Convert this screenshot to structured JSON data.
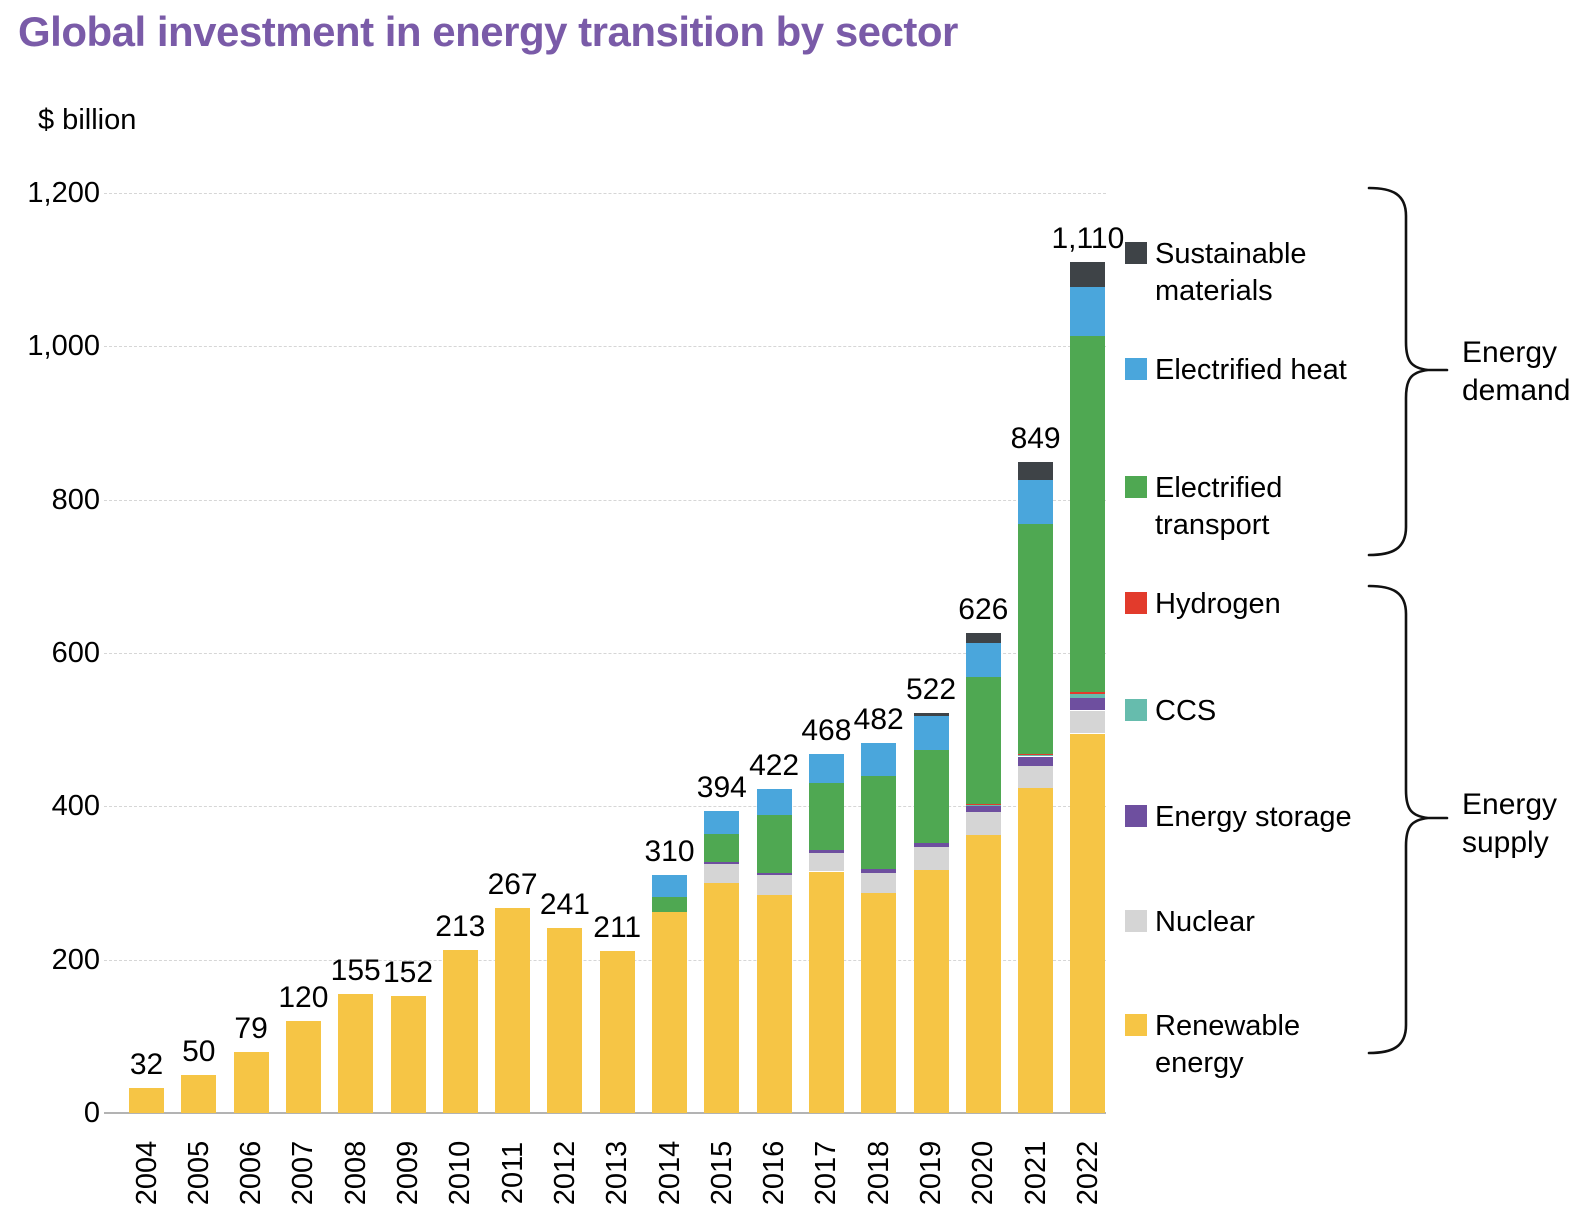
{
  "title": "Global investment in energy transition by sector",
  "units_label": "$ billion",
  "accent_colors": {
    "title_purple": "#7A5BA8",
    "grid": "#d6d6d6",
    "axis": "#b3b3b3"
  },
  "chart_data": {
    "type": "bar",
    "stacked": true,
    "title": "Global investment in energy transition by sector",
    "ylabel": "$ billion",
    "xlabel": "",
    "ylim": [
      0,
      1200
    ],
    "ytick_values": [
      0,
      200,
      400,
      600,
      800,
      1000,
      1200
    ],
    "ytick_labels": [
      "0",
      "200",
      "400",
      "600",
      "800",
      "1,000",
      "1,200"
    ],
    "grid": "horizontal dashed",
    "legend_position": "right",
    "categories": [
      "2004",
      "2005",
      "2006",
      "2007",
      "2008",
      "2009",
      "2010",
      "2011",
      "2012",
      "2013",
      "2014",
      "2015",
      "2016",
      "2017",
      "2018",
      "2019",
      "2020",
      "2021",
      "2022"
    ],
    "totals": [
      32,
      50,
      79,
      120,
      155,
      152,
      213,
      267,
      241,
      211,
      310,
      394,
      422,
      468,
      482,
      522,
      626,
      849,
      1110
    ],
    "total_labels": [
      "32",
      "50",
      "79",
      "120",
      "155",
      "152",
      "213",
      "267",
      "241",
      "211",
      "310",
      "394",
      "422",
      "468",
      "482",
      "522",
      "626",
      "849",
      "1,110"
    ],
    "series": [
      {
        "key": "renewable-energy",
        "name": "Renewable energy",
        "color": "#F6C545",
        "values": [
          32,
          50,
          79,
          120,
          155,
          152,
          213,
          267,
          241,
          211,
          262,
          300,
          284,
          315,
          287,
          317,
          363,
          424,
          495
        ]
      },
      {
        "key": "nuclear",
        "name": "Nuclear",
        "color": "#D5D5D5",
        "values": [
          0,
          0,
          0,
          0,
          0,
          0,
          0,
          0,
          0,
          0,
          0,
          25,
          27,
          24,
          26,
          30,
          30,
          29,
          30
        ]
      },
      {
        "key": "energy-storage",
        "name": "Energy storage",
        "color": "#6E4F9F",
        "values": [
          0,
          0,
          0,
          0,
          0,
          0,
          0,
          0,
          0,
          0,
          0,
          2,
          2,
          4,
          5,
          5,
          7,
          12,
          16
        ]
      },
      {
        "key": "ccs",
        "name": "CCS",
        "color": "#66BCAD",
        "values": [
          0,
          0,
          0,
          0,
          0,
          0,
          0,
          0,
          0,
          0,
          0,
          0,
          0,
          0,
          0,
          0,
          2,
          2,
          6
        ]
      },
      {
        "key": "hydrogen",
        "name": "Hydrogen",
        "color": "#E23B2C",
        "values": [
          0,
          0,
          0,
          0,
          0,
          0,
          0,
          0,
          0,
          0,
          0,
          0,
          0,
          0,
          0,
          0,
          1,
          1,
          2
        ]
      },
      {
        "key": "electrified-transport",
        "name": "Electrified transport",
        "color": "#4FA852",
        "values": [
          0,
          0,
          0,
          0,
          0,
          0,
          0,
          0,
          0,
          0,
          20,
          37,
          76,
          88,
          122,
          121,
          166,
          300,
          464
        ]
      },
      {
        "key": "electrified-heat",
        "name": "Electrified heat",
        "color": "#4AA6DC",
        "values": [
          0,
          0,
          0,
          0,
          0,
          0,
          0,
          0,
          0,
          0,
          28,
          30,
          33,
          37,
          42,
          45,
          44,
          58,
          64
        ]
      },
      {
        "key": "sustainable-materials",
        "name": "Sustainable materials",
        "color": "#3E4347",
        "values": [
          0,
          0,
          0,
          0,
          0,
          0,
          0,
          0,
          0,
          0,
          0,
          0,
          0,
          0,
          0,
          4,
          13,
          23,
          33
        ]
      }
    ],
    "legend": [
      {
        "key": "sustainable-materials",
        "lines": [
          "Sustainable",
          "materials"
        ],
        "color": "#3E4347"
      },
      {
        "key": "electrified-heat",
        "lines": [
          "Electrified heat"
        ],
        "color": "#4AA6DC"
      },
      {
        "key": "electrified-transport",
        "lines": [
          "Electrified",
          "transport"
        ],
        "color": "#4FA852"
      },
      {
        "key": "hydrogen",
        "lines": [
          "Hydrogen"
        ],
        "color": "#E23B2C"
      },
      {
        "key": "ccs",
        "lines": [
          "CCS"
        ],
        "color": "#66BCAD"
      },
      {
        "key": "energy-storage",
        "lines": [
          "Energy storage"
        ],
        "color": "#6E4F9F"
      },
      {
        "key": "nuclear",
        "lines": [
          "Nuclear"
        ],
        "color": "#D5D5D5"
      },
      {
        "key": "renewable-energy",
        "lines": [
          "Renewable",
          "energy"
        ],
        "color": "#F6C545"
      }
    ],
    "group_annotations": [
      {
        "key": "energy-demand",
        "lines": [
          "Energy",
          "demand"
        ],
        "members": [
          "Sustainable materials",
          "Electrified heat",
          "Electrified transport"
        ]
      },
      {
        "key": "energy-supply",
        "lines": [
          "Energy",
          "supply"
        ],
        "members": [
          "Hydrogen",
          "CCS",
          "Energy storage",
          "Nuclear",
          "Renewable energy"
        ]
      }
    ]
  }
}
